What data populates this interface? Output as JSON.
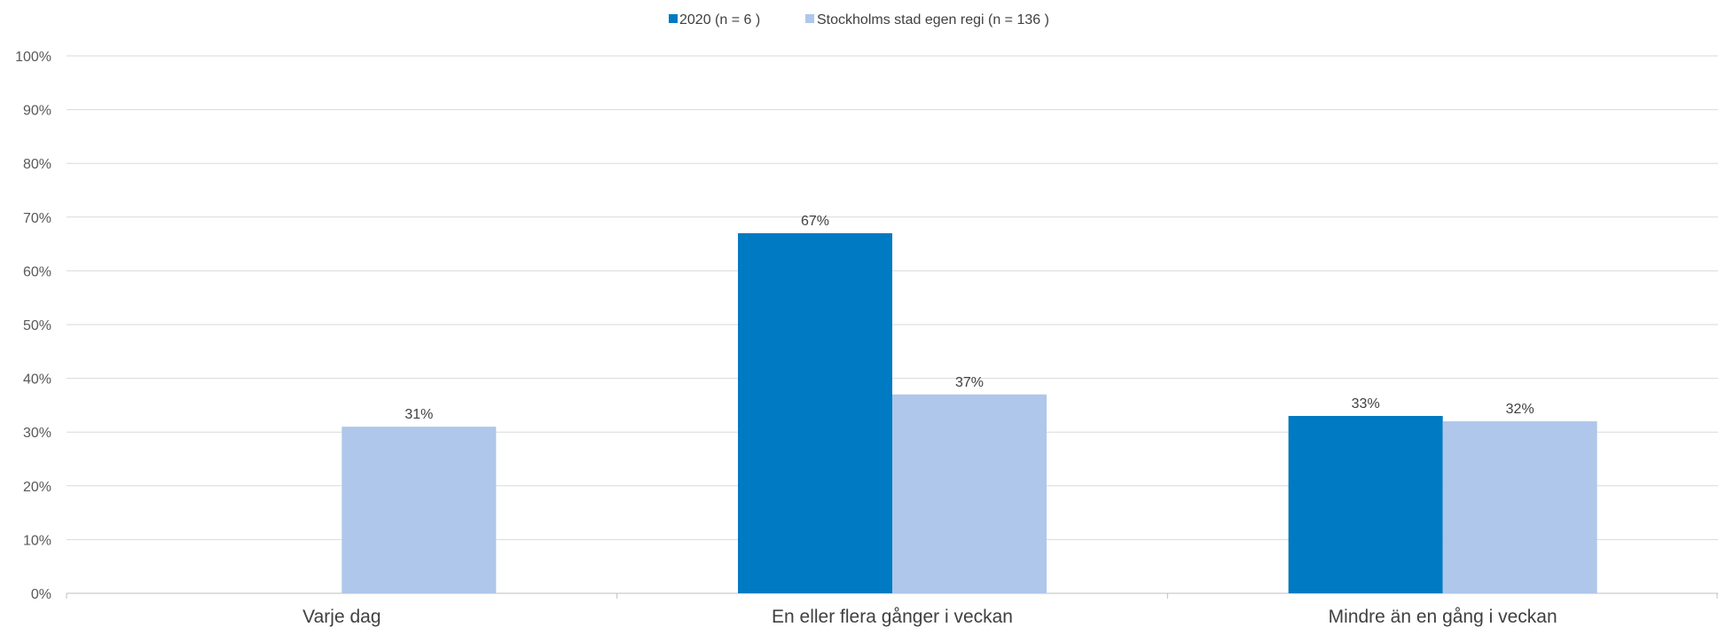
{
  "chart_data": {
    "type": "bar",
    "categories": [
      "Varje dag",
      "En eller flera gånger i veckan",
      "Mindre än en gång i veckan"
    ],
    "series": [
      {
        "name": "2020 (n = 6 )",
        "color": "#007AC2",
        "values": [
          0,
          67,
          33
        ],
        "labels": [
          "",
          "67%",
          "33%"
        ]
      },
      {
        "name": "Stockholms stad egen regi (n = 136 )",
        "color": "#AEC7EA",
        "values": [
          31,
          37,
          32
        ],
        "labels": [
          "31%",
          "37%",
          "32%"
        ]
      }
    ],
    "ylim": [
      0,
      100
    ],
    "yticks": [
      "0%",
      "10%",
      "20%",
      "30%",
      "40%",
      "50%",
      "60%",
      "70%",
      "80%",
      "90%",
      "100%"
    ],
    "grid": true,
    "legend": "top-center",
    "title": "",
    "xlabel": "",
    "ylabel": ""
  }
}
